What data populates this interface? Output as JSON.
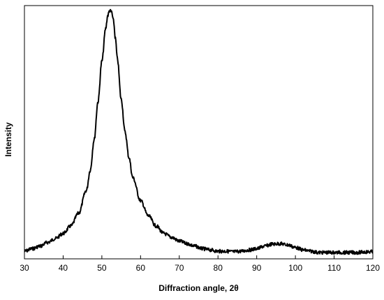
{
  "chart_data": {
    "type": "line",
    "title": "",
    "xlabel": "Diffraction angle, 2θ",
    "ylabel": "Intensity",
    "xlim": [
      30,
      120
    ],
    "ylim": [
      0,
      1
    ],
    "x_ticks": [
      30,
      40,
      50,
      60,
      70,
      80,
      90,
      100,
      110,
      120
    ],
    "y_ticks": [],
    "grid": false,
    "legend": "none",
    "series": [
      {
        "color": "#000000",
        "x": [
          30,
          32,
          34,
          36,
          38,
          40,
          42,
          44,
          46,
          47,
          48,
          49,
          50,
          51,
          51.5,
          52,
          52.5,
          53,
          53.5,
          54,
          55,
          56,
          57,
          58,
          60,
          62,
          64,
          66,
          68,
          70,
          72,
          74,
          76,
          78,
          80,
          82,
          84,
          86,
          88,
          90,
          92,
          94,
          96,
          98,
          100,
          102,
          104,
          106,
          108,
          110,
          112,
          114,
          116,
          118,
          120
        ],
        "y": [
          0.03,
          0.04,
          0.05,
          0.065,
          0.08,
          0.1,
          0.13,
          0.18,
          0.27,
          0.35,
          0.47,
          0.62,
          0.78,
          0.91,
          0.96,
          0.98,
          0.975,
          0.94,
          0.87,
          0.79,
          0.63,
          0.5,
          0.4,
          0.32,
          0.23,
          0.17,
          0.13,
          0.1,
          0.085,
          0.07,
          0.06,
          0.05,
          0.04,
          0.035,
          0.03,
          0.03,
          0.028,
          0.03,
          0.035,
          0.04,
          0.05,
          0.058,
          0.06,
          0.055,
          0.045,
          0.035,
          0.03,
          0.025,
          0.025,
          0.025,
          0.025,
          0.025,
          0.025,
          0.027,
          0.028
        ]
      }
    ]
  }
}
